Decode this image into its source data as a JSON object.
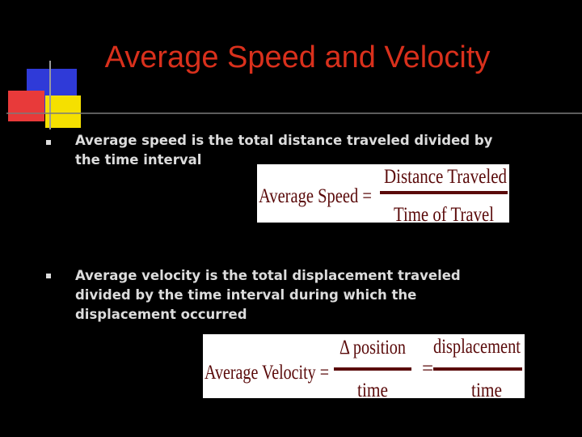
{
  "title": "Average Speed and Velocity",
  "bullets": [
    {
      "lines": [
        "Average speed is the total distance traveled divided by",
        "the time interval"
      ]
    },
    {
      "lines": [
        "Average velocity is the total displacement traveled",
        "divided by the time interval during which the",
        "displacement occurred"
      ]
    }
  ],
  "formula_speed": {
    "lhs": "Average Speed =",
    "numerator": "Distance Traveled",
    "denominator": "Time of Travel"
  },
  "formula_velocity": {
    "lhs": "Average Velocity =",
    "numerator_1": "Δ position",
    "denominator_1": "time",
    "equals": "=",
    "numerator_2": "displacement",
    "denominator_2": "time"
  }
}
